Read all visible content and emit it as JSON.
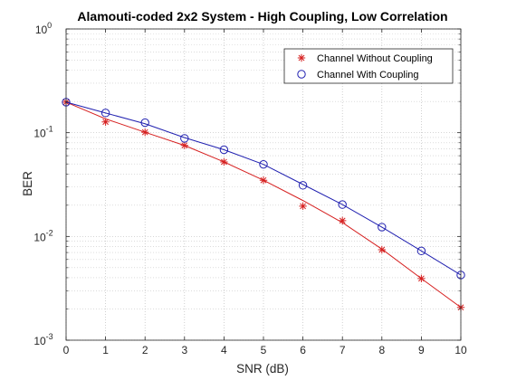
{
  "chart_data": {
    "type": "line",
    "title": "Alamouti-coded 2x2 System - High Coupling, Low Correlation",
    "xlabel": "SNR (dB)",
    "ylabel": "BER",
    "x_scale": "linear",
    "y_scale": "log",
    "xlim": [
      0,
      10
    ],
    "ylim": [
      0.001,
      1
    ],
    "x_ticks": [
      "0",
      "1",
      "2",
      "3",
      "4",
      "5",
      "6",
      "7",
      "8",
      "9",
      "10"
    ],
    "y_ticks": [
      {
        "base": "10",
        "exp": "-3",
        "value": 0.001
      },
      {
        "base": "10",
        "exp": "-2",
        "value": 0.01
      },
      {
        "base": "10",
        "exp": "-1",
        "value": 0.1
      },
      {
        "base": "10",
        "exp": "0",
        "value": 1
      }
    ],
    "grid": true,
    "minor_grid": true,
    "legend_position": "top-right",
    "x": [
      0,
      1,
      2,
      3,
      4,
      5,
      6,
      7,
      8,
      9,
      10
    ],
    "series": [
      {
        "name": "Channel Without Coupling",
        "color": "#d62020",
        "marker": "asterisk",
        "values": [
          0.197,
          0.127,
          0.101,
          0.0754,
          0.0523,
          0.0348,
          0.0196,
          0.0142,
          0.00745,
          0.00393,
          0.00207
        ],
        "curve": [
          0.197,
          0.136,
          0.101,
          0.0754,
          0.0523,
          0.0348,
          0.0222,
          0.0136,
          0.00755,
          0.00393,
          0.00207
        ]
      },
      {
        "name": "Channel With Coupling",
        "color": "#2020b0",
        "marker": "circle",
        "values": [
          0.197,
          0.155,
          0.125,
          0.0882,
          0.0685,
          0.0495,
          0.0311,
          0.0203,
          0.0123,
          0.00725,
          0.00425
        ],
        "curve": [
          0.197,
          0.155,
          0.122,
          0.0896,
          0.0685,
          0.0495,
          0.0317,
          0.0203,
          0.0123,
          0.00725,
          0.00425
        ]
      }
    ]
  }
}
